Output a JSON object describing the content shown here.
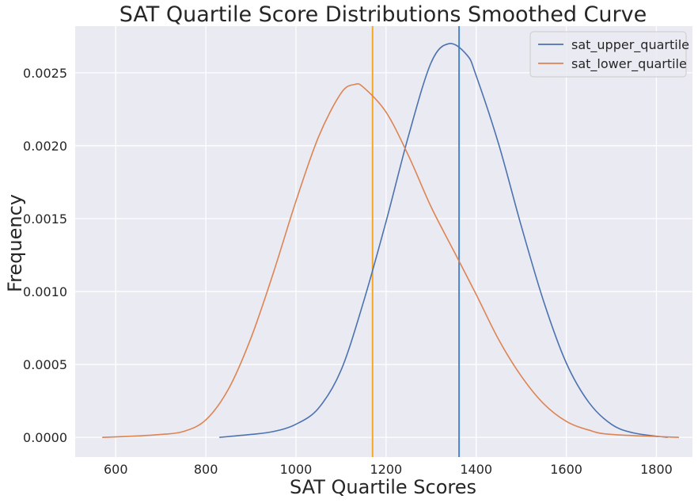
{
  "chart_data": {
    "type": "line",
    "title": "SAT Quartile Score Distributions Smoothed Curve",
    "xlabel": "SAT Quartile Scores",
    "ylabel": "Frequency",
    "xlim": [
      510,
      1880
    ],
    "ylim": [
      -0.000135,
      0.00282
    ],
    "x_ticks": [
      600,
      800,
      1000,
      1200,
      1400,
      1600,
      1800
    ],
    "x_tick_labels": [
      "600",
      "800",
      "1000",
      "1200",
      "1400",
      "1600",
      "1800"
    ],
    "y_ticks": [
      0,
      0.0005,
      0.001,
      0.0015,
      0.002,
      0.0025
    ],
    "y_tick_labels": [
      "0.0000",
      "0.0005",
      "0.0010",
      "0.0015",
      "0.0020",
      "0.0025"
    ],
    "grid": true,
    "legend_position": "top-right",
    "series": [
      {
        "name": "sat_upper_quartile",
        "color": "#4c72b0",
        "points": [
          [
            830,
            0.0
          ],
          [
            900,
            2e-05
          ],
          [
            950,
            4e-05
          ],
          [
            1000,
            9e-05
          ],
          [
            1050,
            0.0002
          ],
          [
            1100,
            0.00046
          ],
          [
            1150,
            0.00093
          ],
          [
            1200,
            0.00148
          ],
          [
            1250,
            0.00207
          ],
          [
            1300,
            0.00257
          ],
          [
            1340,
            0.0027
          ],
          [
            1380,
            0.00262
          ],
          [
            1400,
            0.00248
          ],
          [
            1450,
            0.00201
          ],
          [
            1500,
            0.00145
          ],
          [
            1550,
            0.00093
          ],
          [
            1600,
            0.00051
          ],
          [
            1650,
            0.00024
          ],
          [
            1700,
            9e-05
          ],
          [
            1750,
            3e-05
          ],
          [
            1825,
            0.0
          ]
        ]
      },
      {
        "name": "sat_lower_quartile",
        "color": "#dd8452",
        "points": [
          [
            570,
            0.0
          ],
          [
            650,
            1e-05
          ],
          [
            700,
            2e-05
          ],
          [
            750,
            4e-05
          ],
          [
            800,
            0.00012
          ],
          [
            850,
            0.00033
          ],
          [
            900,
            0.00068
          ],
          [
            950,
            0.00113
          ],
          [
            1000,
            0.00162
          ],
          [
            1050,
            0.00206
          ],
          [
            1100,
            0.00236
          ],
          [
            1130,
            0.00242
          ],
          [
            1150,
            0.0024
          ],
          [
            1200,
            0.00223
          ],
          [
            1250,
            0.00193
          ],
          [
            1300,
            0.00158
          ],
          [
            1350,
            0.00128
          ],
          [
            1400,
            0.00098
          ],
          [
            1450,
            0.00067
          ],
          [
            1500,
            0.00042
          ],
          [
            1550,
            0.00023
          ],
          [
            1600,
            0.00011
          ],
          [
            1650,
            5e-05
          ],
          [
            1700,
            2e-05
          ],
          [
            1850,
            0.0
          ]
        ]
      }
    ],
    "vertical_lines": [
      {
        "x": 1170,
        "color": "#f5a623"
      },
      {
        "x": 1362,
        "color": "#4a86c8"
      }
    ],
    "colors": {
      "plot_background": "#eaeaf2",
      "grid": "#ffffff"
    }
  }
}
